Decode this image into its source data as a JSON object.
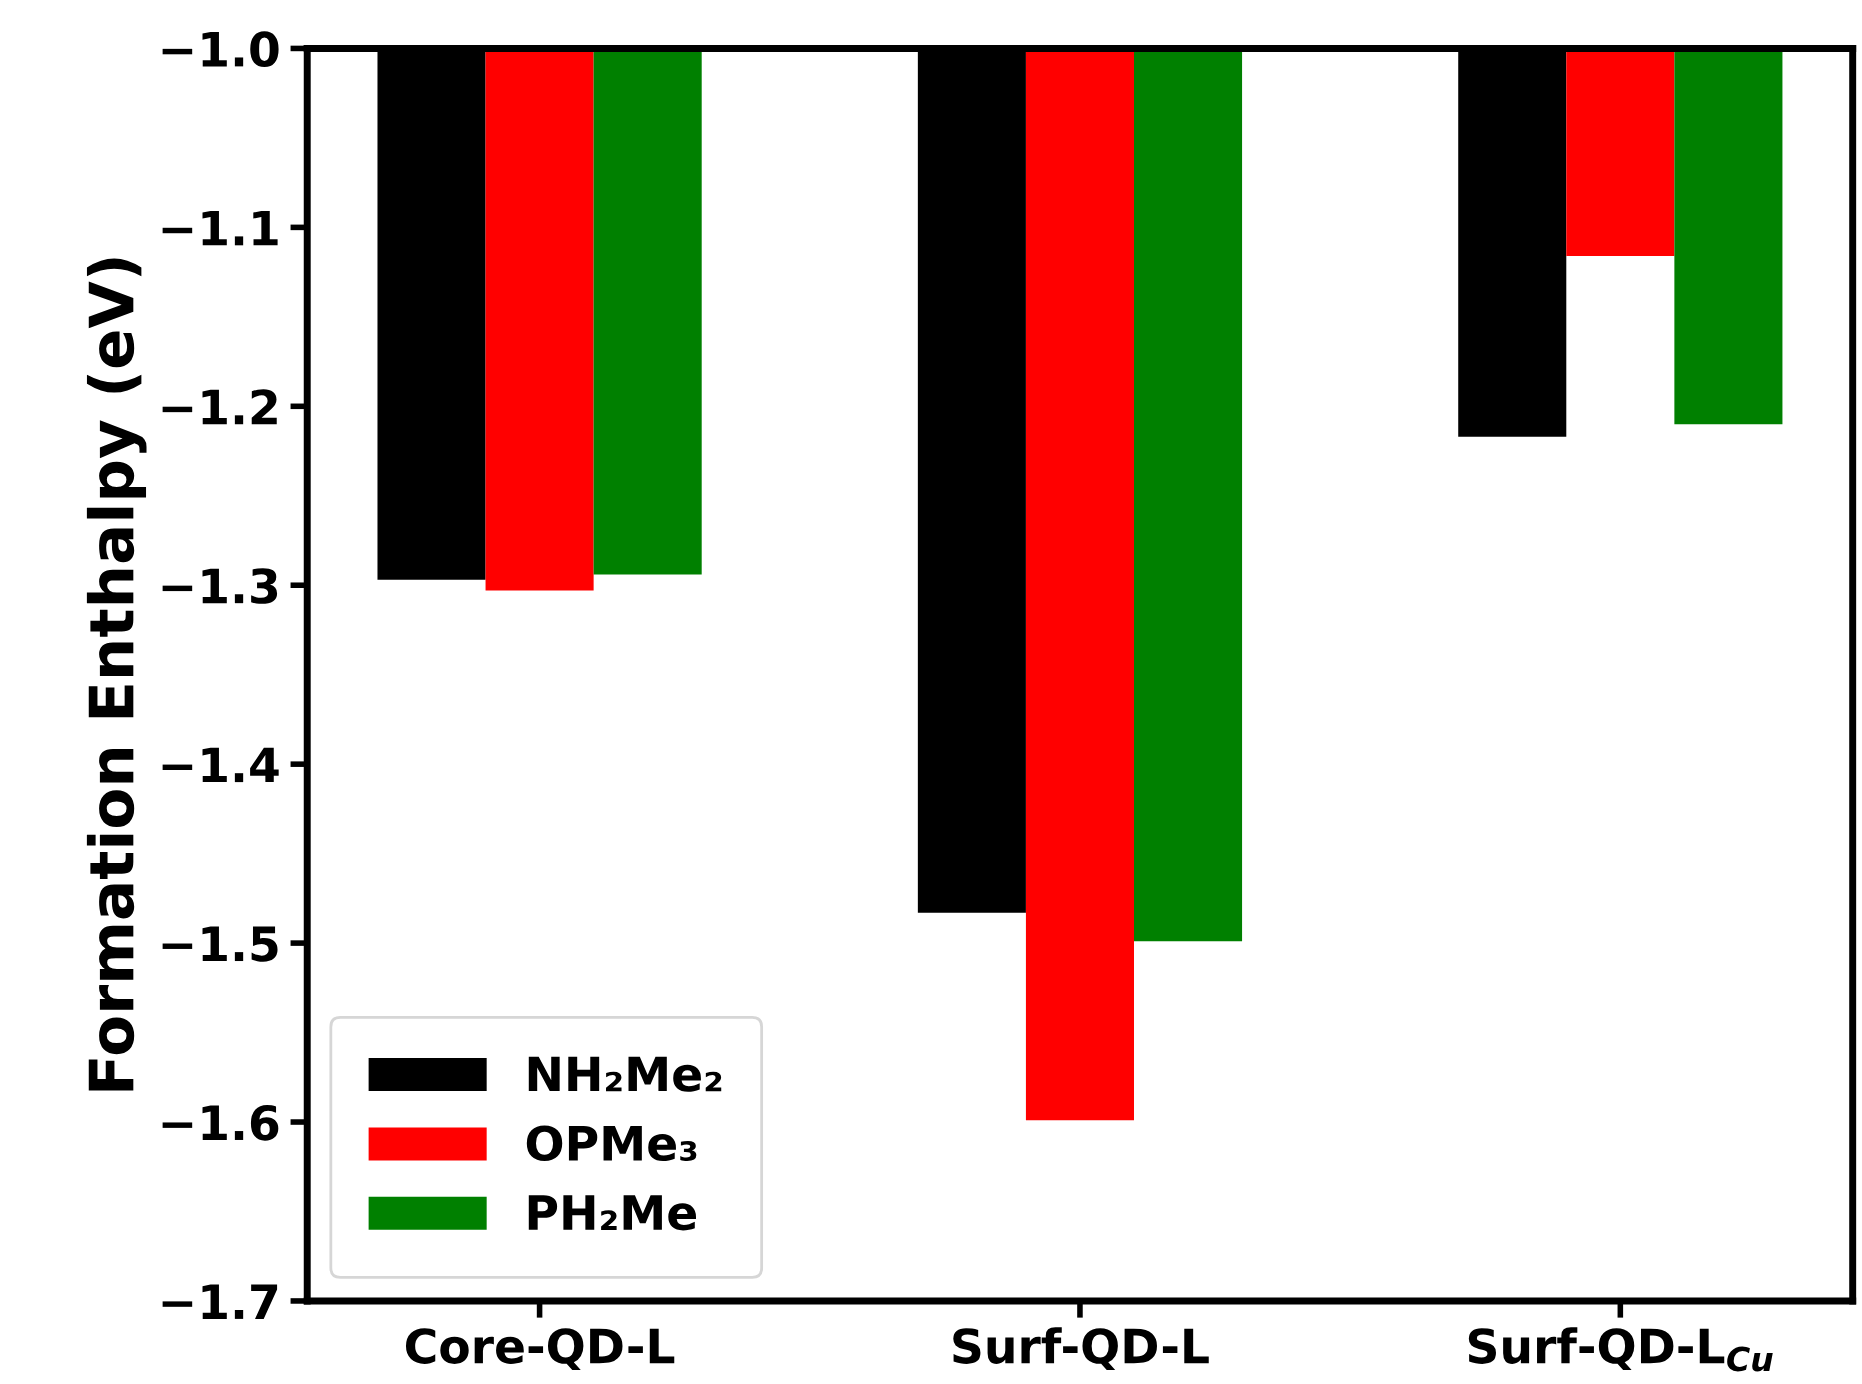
{
  "chart_data": {
    "type": "bar",
    "ylabel": "Formation Enthalpy (eV)",
    "categories": [
      "Core-QD-L",
      "Surf-QD-L",
      "Surf-QD-L$_{Cu}$"
    ],
    "series": [
      {
        "name": "NH₂Me₂",
        "color": "#000000",
        "values": [
          -1.297,
          -1.483,
          -1.217
        ]
      },
      {
        "name": "OPMe₃",
        "color": "#ff0000",
        "values": [
          -1.303,
          -1.599,
          -1.116
        ]
      },
      {
        "name": "PH₂Me",
        "color": "#008000",
        "values": [
          -1.294,
          -1.499,
          -1.21
        ]
      }
    ],
    "ylim": [
      -1.7,
      -1.0
    ],
    "yticks": [
      {
        "value": -1.7,
        "label": "−1.7"
      },
      {
        "value": -1.6,
        "label": "−1.6"
      },
      {
        "value": -1.5,
        "label": "−1.5"
      },
      {
        "value": -1.4,
        "label": "−1.4"
      },
      {
        "value": -1.3,
        "label": "−1.3"
      },
      {
        "value": -1.2,
        "label": "−1.2"
      },
      {
        "value": -1.1,
        "label": "−1.1"
      },
      {
        "value": -1.0,
        "label": "−1.0"
      }
    ],
    "grid": false,
    "legend": "bottom left"
  }
}
